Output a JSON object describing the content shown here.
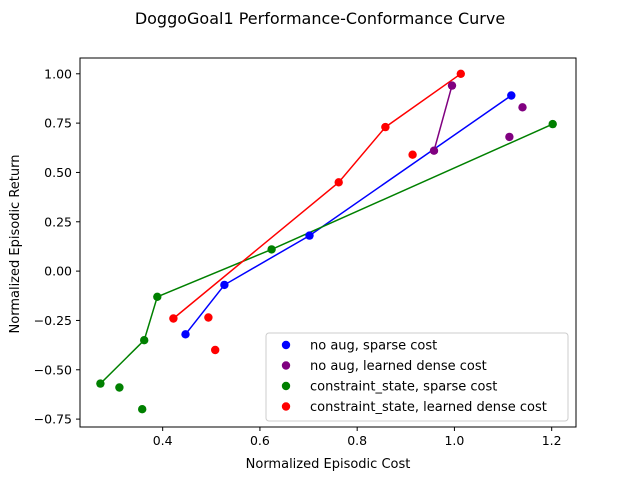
{
  "chart_data": {
    "type": "scatter",
    "title": "DoggoGoal1 Performance-Conformance Curve",
    "xlabel": "Normalized Episodic Cost",
    "ylabel": "Normalized Episodic Return",
    "xlim": [
      0.23,
      1.25
    ],
    "ylim": [
      -0.79,
      1.08
    ],
    "x_ticks": [
      0.4,
      0.6,
      0.8,
      1.0,
      1.2
    ],
    "x_tick_labels": [
      "0.4",
      "0.6",
      "0.8",
      "1.0",
      "1.2"
    ],
    "y_ticks": [
      -0.75,
      -0.5,
      -0.25,
      0.0,
      0.25,
      0.5,
      0.75,
      1.0
    ],
    "y_tick_labels": [
      "−0.75",
      "−0.50",
      "−0.25",
      "0.00",
      "0.25",
      "0.50",
      "0.75",
      "1.00"
    ],
    "grid": false,
    "legend_position": "bottom-right",
    "series": [
      {
        "name": "no aug, sparse cost",
        "color": "#0000ff",
        "points": [
          [
            0.447,
            -0.32
          ],
          [
            0.527,
            -0.07
          ],
          [
            0.702,
            0.18
          ],
          [
            1.117,
            0.89
          ]
        ],
        "frontier": [
          [
            0.447,
            -0.32
          ],
          [
            0.527,
            -0.07
          ],
          [
            0.702,
            0.18
          ],
          [
            1.117,
            0.89
          ]
        ]
      },
      {
        "name": "no aug, learned dense cost",
        "color": "#800080",
        "points": [
          [
            0.958,
            0.61
          ],
          [
            0.995,
            0.94
          ],
          [
            1.113,
            0.68
          ],
          [
            1.14,
            0.83
          ]
        ],
        "frontier": [
          [
            0.958,
            0.61
          ],
          [
            0.995,
            0.94
          ]
        ]
      },
      {
        "name": "constraint_state, sparse cost",
        "color": "#008000",
        "points": [
          [
            0.272,
            -0.57
          ],
          [
            0.311,
            -0.59
          ],
          [
            0.358,
            -0.7
          ],
          [
            0.362,
            -0.35
          ],
          [
            0.389,
            -0.13
          ],
          [
            0.624,
            0.11
          ],
          [
            1.202,
            0.745
          ]
        ],
        "frontier": [
          [
            0.272,
            -0.57
          ],
          [
            0.362,
            -0.35
          ],
          [
            0.389,
            -0.13
          ],
          [
            0.624,
            0.11
          ],
          [
            1.202,
            0.745
          ]
        ]
      },
      {
        "name": "constraint_state, learned dense cost",
        "color": "#ff0000",
        "points": [
          [
            0.422,
            -0.24
          ],
          [
            0.494,
            -0.235
          ],
          [
            0.508,
            -0.4
          ],
          [
            0.762,
            0.45
          ],
          [
            0.858,
            0.73
          ],
          [
            0.914,
            0.59
          ],
          [
            1.013,
            1.0
          ]
        ],
        "frontier": [
          [
            0.422,
            -0.24
          ],
          [
            0.762,
            0.45
          ],
          [
            0.858,
            0.73
          ],
          [
            1.013,
            1.0
          ]
        ]
      }
    ]
  }
}
